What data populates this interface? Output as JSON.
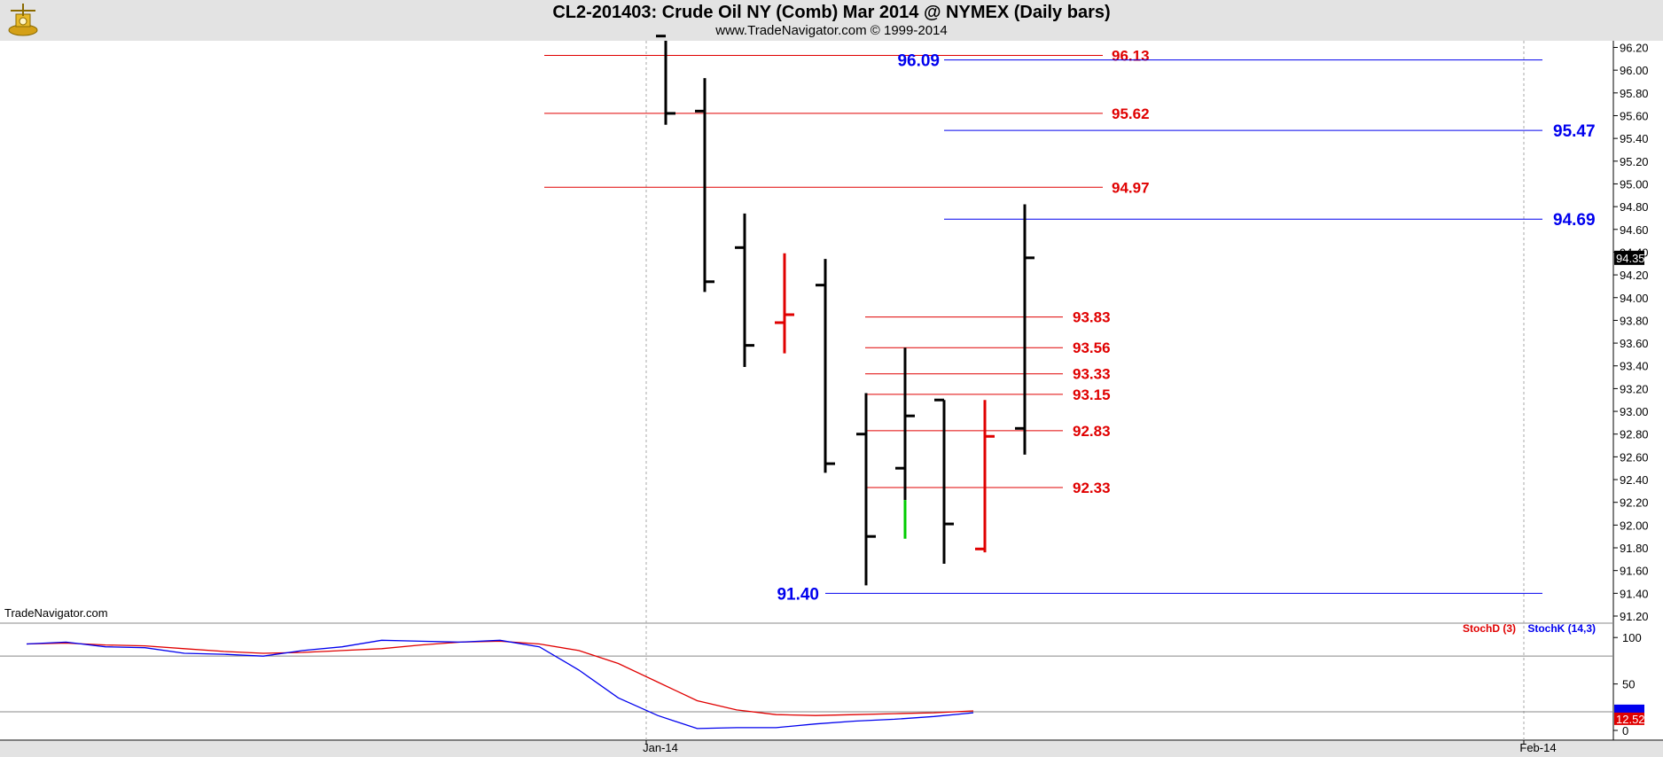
{
  "header": {
    "title": "CL2-201403:  Crude Oil NY (Comb) Mar 2014 @ NYMEX  (Daily bars)",
    "subtitle": "www.TradeNavigator.com © 1999-2014"
  },
  "watermark": "TradeNavigator.com",
  "colors": {
    "red": "#e00000",
    "blue": "#0000ee",
    "bar": "#000000",
    "green": "#00cc00"
  },
  "chart_data": [
    {
      "type": "ohlc",
      "ylim": [
        91.1,
        96.3
      ],
      "y_ticks": [
        "96.20",
        "96.00",
        "95.80",
        "95.60",
        "95.40",
        "95.20",
        "95.00",
        "94.80",
        "94.60",
        "94.40",
        "94.20",
        "94.00",
        "93.80",
        "93.60",
        "93.40",
        "93.20",
        "93.00",
        "92.80",
        "92.60",
        "92.40",
        "92.20",
        "92.00",
        "91.80",
        "91.60",
        "91.40",
        "91.20"
      ],
      "x_labels": [
        "Jan-14",
        "Feb-14"
      ],
      "current_price": "94.35",
      "bars": [
        {
          "open": 96.3,
          "high": 96.3,
          "low": 95.52,
          "close": 95.62,
          "color": "#000000"
        },
        {
          "open": 95.64,
          "high": 95.93,
          "low": 94.05,
          "close": 94.14,
          "color": "#000000"
        },
        {
          "open": 94.44,
          "high": 94.74,
          "low": 93.39,
          "close": 93.58,
          "color": "#000000"
        },
        {
          "open": 93.78,
          "high": 94.39,
          "low": 93.51,
          "close": 93.85,
          "color": "#e00000"
        },
        {
          "open": 94.11,
          "high": 94.34,
          "low": 92.46,
          "close": 92.54,
          "color": "#000000"
        },
        {
          "open": 92.8,
          "high": 93.16,
          "low": 91.47,
          "close": 91.9,
          "color": "#000000"
        },
        {
          "open": 92.5,
          "high": 93.56,
          "low": 92.22,
          "close": 92.96,
          "color": "#000000"
        },
        {
          "open": 93.1,
          "high": 93.1,
          "low": 91.66,
          "close": 92.01,
          "color": "#000000"
        },
        {
          "open": 91.79,
          "high": 93.1,
          "low": 91.76,
          "close": 92.78,
          "color": "#e00000"
        },
        {
          "open": 92.85,
          "high": 94.82,
          "low": 92.62,
          "close": 94.35,
          "color": "#000000"
        }
      ],
      "extra_segment": {
        "high": 92.22,
        "low": 91.88,
        "color": "#00cc00"
      },
      "levels_red": [
        "96.13",
        "95.62",
        "94.97",
        "93.83",
        "93.56",
        "93.33",
        "93.15",
        "92.83",
        "92.33"
      ],
      "levels_blue": [
        "96.09",
        "95.47",
        "94.69",
        "91.40"
      ]
    },
    {
      "type": "line",
      "ylim": [
        0,
        100
      ],
      "y_ticks": [
        "100",
        "50",
        "0"
      ],
      "current_value": "12.52",
      "series": [
        {
          "name": "StochD (3)",
          "color": "#e00000",
          "values": [
            93,
            94,
            92,
            91,
            88,
            85,
            83,
            84,
            86,
            88,
            92,
            95,
            96,
            93,
            86,
            72,
            52,
            32,
            22,
            17,
            16,
            17,
            18,
            19,
            21
          ]
        },
        {
          "name": "StochK (14,3)",
          "color": "#0000ee",
          "values": [
            93,
            95,
            90,
            89,
            83,
            82,
            80,
            86,
            90,
            97,
            96,
            95,
            97,
            90,
            65,
            35,
            16,
            2,
            3,
            3,
            7,
            10,
            12,
            15,
            19
          ]
        }
      ]
    }
  ]
}
